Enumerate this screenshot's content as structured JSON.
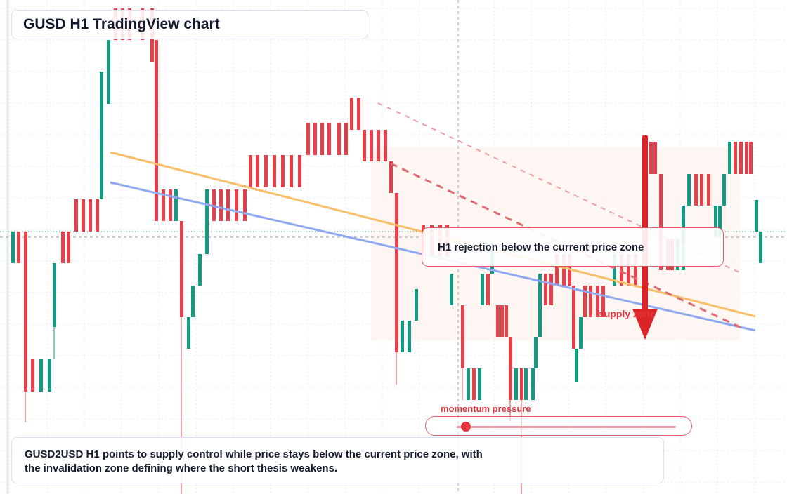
{
  "title": "GUSD H1 TradingView chart",
  "callout": "H1 rejection below the current price zone",
  "zone_label": "supply zone",
  "meter": {
    "label": "momentum pressure",
    "value": 0.04
  },
  "caption": {
    "line1": "GUSD2USD H1 points to supply control while price stays below the current price zone, with",
    "line2": "the invalidation zone defining where the short thesis weakens."
  },
  "colors": {
    "up": "#139a80",
    "down": "#e8404b",
    "orange_line": "#f8be6a",
    "blue_line": "#8fa9f0",
    "arrow": "#dc2326",
    "zone_fill": "#fdf2ec"
  },
  "chart_data": {
    "type": "candlestick",
    "timeframe": "H1",
    "symbol": "GUSD2USD",
    "current_price": 0.0,
    "trendlines": [
      "orange",
      "blue",
      "red-dashed",
      "red-dashed-faint"
    ],
    "candles": [
      {
        "o": 0,
        "h": 0,
        "l": 0,
        "c": 0
      }
    ]
  }
}
